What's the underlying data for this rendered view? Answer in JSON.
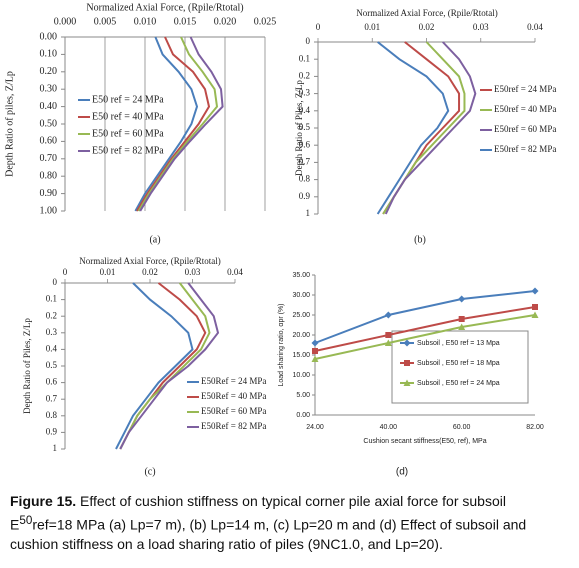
{
  "chart_data": [
    {
      "type": "profile",
      "label": "(a)",
      "x_title": "Normalized Axial Force, (Rpile/Rtotal)",
      "y_title": "Depth Ratio of piles, Z/Lp",
      "xlim": [
        0,
        0.025
      ],
      "xticks": [
        {
          "value": 0,
          "label": "0.000"
        },
        {
          "value": 0.005,
          "label": "0.005"
        },
        {
          "value": 0.01,
          "label": "0.010"
        },
        {
          "value": 0.015,
          "label": "0.015"
        },
        {
          "value": 0.02,
          "label": "0.020"
        },
        {
          "value": 0.025,
          "label": "0.025"
        }
      ],
      "ylim": [
        0,
        1
      ],
      "yticks": [
        {
          "value": 0,
          "label": "0.00"
        },
        {
          "value": 0.1,
          "label": "0.10"
        },
        {
          "value": 0.2,
          "label": "0.20"
        },
        {
          "value": 0.3,
          "label": "0.30"
        },
        {
          "value": 0.4,
          "label": "0.40"
        },
        {
          "value": 0.5,
          "label": "0.50"
        },
        {
          "value": 0.6,
          "label": "0.60"
        },
        {
          "value": 0.7,
          "label": "0.70"
        },
        {
          "value": 0.8,
          "label": "0.80"
        },
        {
          "value": 0.9,
          "label": "0.90"
        },
        {
          "value": 1,
          "label": "1.00"
        }
      ],
      "grid": true,
      "y": [
        0,
        0.1,
        0.2,
        0.3,
        0.4,
        0.5,
        0.6,
        0.7,
        0.8,
        0.9,
        1
      ],
      "series": [
        {
          "name": "E50 ref = 24 MPa",
          "color": "#4a7ebb",
          "values": [
            0.0113,
            0.0122,
            0.0142,
            0.0158,
            0.0165,
            0.0158,
            0.0145,
            0.013,
            0.0115,
            0.01,
            0.0088
          ]
        },
        {
          "name": "E50 ref = 40 MPa",
          "color": "#be4b48",
          "values": [
            0.0125,
            0.0135,
            0.016,
            0.0175,
            0.018,
            0.0167,
            0.015,
            0.0133,
            0.0118,
            0.0103,
            0.009
          ]
        },
        {
          "name": "E50 ref = 60 MPa",
          "color": "#98b954",
          "values": [
            0.0145,
            0.0155,
            0.0172,
            0.0187,
            0.019,
            0.0172,
            0.0153,
            0.0135,
            0.012,
            0.0105,
            0.0092
          ]
        },
        {
          "name": "E50 ref = 82 MPa",
          "color": "#7d60a0",
          "values": [
            0.0157,
            0.0167,
            0.0183,
            0.0195,
            0.0197,
            0.0176,
            0.0156,
            0.0137,
            0.0122,
            0.0107,
            0.0094
          ]
        }
      ]
    },
    {
      "type": "profile",
      "label": "(b)",
      "x_title": "Normalized Axial Force, (Rpile/Rtotal)",
      "y_title": "Depth Ratio of Piles, Z/Lp",
      "xlim": [
        0,
        0.04
      ],
      "xticks": [
        0,
        0.01,
        0.02,
        0.03,
        0.04
      ],
      "ylim": [
        0,
        1
      ],
      "yticks": [
        0,
        0.1,
        0.2,
        0.3,
        0.4,
        0.5,
        0.6,
        0.7,
        0.8,
        0.9,
        1
      ],
      "grid": false,
      "y": [
        0,
        0.1,
        0.2,
        0.3,
        0.4,
        0.5,
        0.6,
        0.7,
        0.8,
        0.9,
        1
      ],
      "series": [
        {
          "name": "E50ref = 24 MPa",
          "color": "#be4b48",
          "values": [
            0.016,
            0.02,
            0.024,
            0.026,
            0.026,
            0.023,
            0.02,
            0.018,
            0.016,
            0.014,
            0.012
          ]
        },
        {
          "name": "E50ref = 40 MPa",
          "color": "#98b954",
          "values": [
            0.02,
            0.023,
            0.026,
            0.027,
            0.027,
            0.024,
            0.021,
            0.018,
            0.016,
            0.014,
            0.012
          ]
        },
        {
          "name": "E50ref = 60 MPa",
          "color": "#7d60a0",
          "values": [
            0.023,
            0.026,
            0.028,
            0.029,
            0.028,
            0.025,
            0.022,
            0.019,
            0.016,
            0.014,
            0.0125
          ]
        },
        {
          "name": "E50ref = 82 MPa",
          "color": "#4a7ebb",
          "values": [
            0.011,
            0.015,
            0.02,
            0.023,
            0.024,
            0.022,
            0.019,
            0.017,
            0.015,
            0.013,
            0.011
          ]
        }
      ]
    },
    {
      "type": "profile",
      "label": "(c)",
      "x_title": "Normalized Axial Force, (Rpile/Rtotal)",
      "y_title": "Depth Ratio of Piles, Z/Lp",
      "xlim": [
        0,
        0.04
      ],
      "xticks": [
        0,
        0.01,
        0.02,
        0.03,
        0.04
      ],
      "ylim": [
        0,
        1
      ],
      "yticks": [
        0,
        0.1,
        0.2,
        0.3,
        0.4,
        0.5,
        0.6,
        0.7,
        0.8,
        0.9,
        1
      ],
      "grid": false,
      "y": [
        0,
        0.1,
        0.2,
        0.3,
        0.4,
        0.5,
        0.6,
        0.7,
        0.8,
        0.9,
        1
      ],
      "series": [
        {
          "name": "E50Ref = 24 MPa",
          "color": "#4a7ebb",
          "values": [
            0.016,
            0.02,
            0.025,
            0.029,
            0.03,
            0.026,
            0.022,
            0.019,
            0.016,
            0.014,
            0.012
          ]
        },
        {
          "name": "E50Ref = 40 MPa",
          "color": "#be4b48",
          "values": [
            0.022,
            0.027,
            0.031,
            0.033,
            0.031,
            0.027,
            0.023,
            0.02,
            0.017,
            0.015,
            0.013
          ]
        },
        {
          "name": "E50Ref = 60 MPa",
          "color": "#98b954",
          "values": [
            0.027,
            0.03,
            0.033,
            0.034,
            0.032,
            0.028,
            0.024,
            0.02,
            0.017,
            0.015,
            0.013
          ]
        },
        {
          "name": "E50Ref = 82 MPa",
          "color": "#7d60a0",
          "values": [
            0.029,
            0.032,
            0.035,
            0.036,
            0.033,
            0.029,
            0.024,
            0.021,
            0.018,
            0.015,
            0.013
          ]
        }
      ]
    },
    {
      "type": "line",
      "label": "(d)",
      "x_title": "Cushion secant stiffness(E50, ref), MPa",
      "y_title": "Load sharing ratio, αpr (%)",
      "categories": [
        "24.00",
        "40.00",
        "60.00",
        "82.00"
      ],
      "ylim": [
        0,
        35
      ],
      "yticks": [
        {
          "value": 0,
          "label": "0.00"
        },
        {
          "value": 5,
          "label": "5.00"
        },
        {
          "value": 10,
          "label": "10.00"
        },
        {
          "value": 15,
          "label": "15.00"
        },
        {
          "value": 20,
          "label": "20.00"
        },
        {
          "value": 25,
          "label": "25.00"
        },
        {
          "value": 30,
          "label": "30.00"
        },
        {
          "value": 35,
          "label": "35.00"
        }
      ],
      "grid": false,
      "series": [
        {
          "name": "Subsoil , E50 ref = 13 Mpa",
          "color": "#4a7ebb",
          "marker": "diamond",
          "values": [
            18,
            25,
            29,
            31
          ]
        },
        {
          "name": "Subsoil , E50 ref = 18 Mpa",
          "color": "#be4b48",
          "marker": "square",
          "values": [
            16,
            20,
            24,
            27
          ]
        },
        {
          "name": "Subsoil , E50 ref = 24 Mpa",
          "color": "#98b954",
          "marker": "triangle",
          "values": [
            14,
            18,
            22,
            25
          ]
        }
      ]
    }
  ],
  "caption": {
    "label": "Figure 15.",
    "text": "Effect of cushion stiffness on typical corner pile axial force for subsoil E",
    "sup": "50",
    "rest": "ref=18 MPa (a) Lp=7 m), (b) Lp=14 m, (c) Lp=20 m and (d) Effect of subsoil and cushion stiffness on a load sharing ratio of piles (9NC1.0, and Lp=20)."
  }
}
